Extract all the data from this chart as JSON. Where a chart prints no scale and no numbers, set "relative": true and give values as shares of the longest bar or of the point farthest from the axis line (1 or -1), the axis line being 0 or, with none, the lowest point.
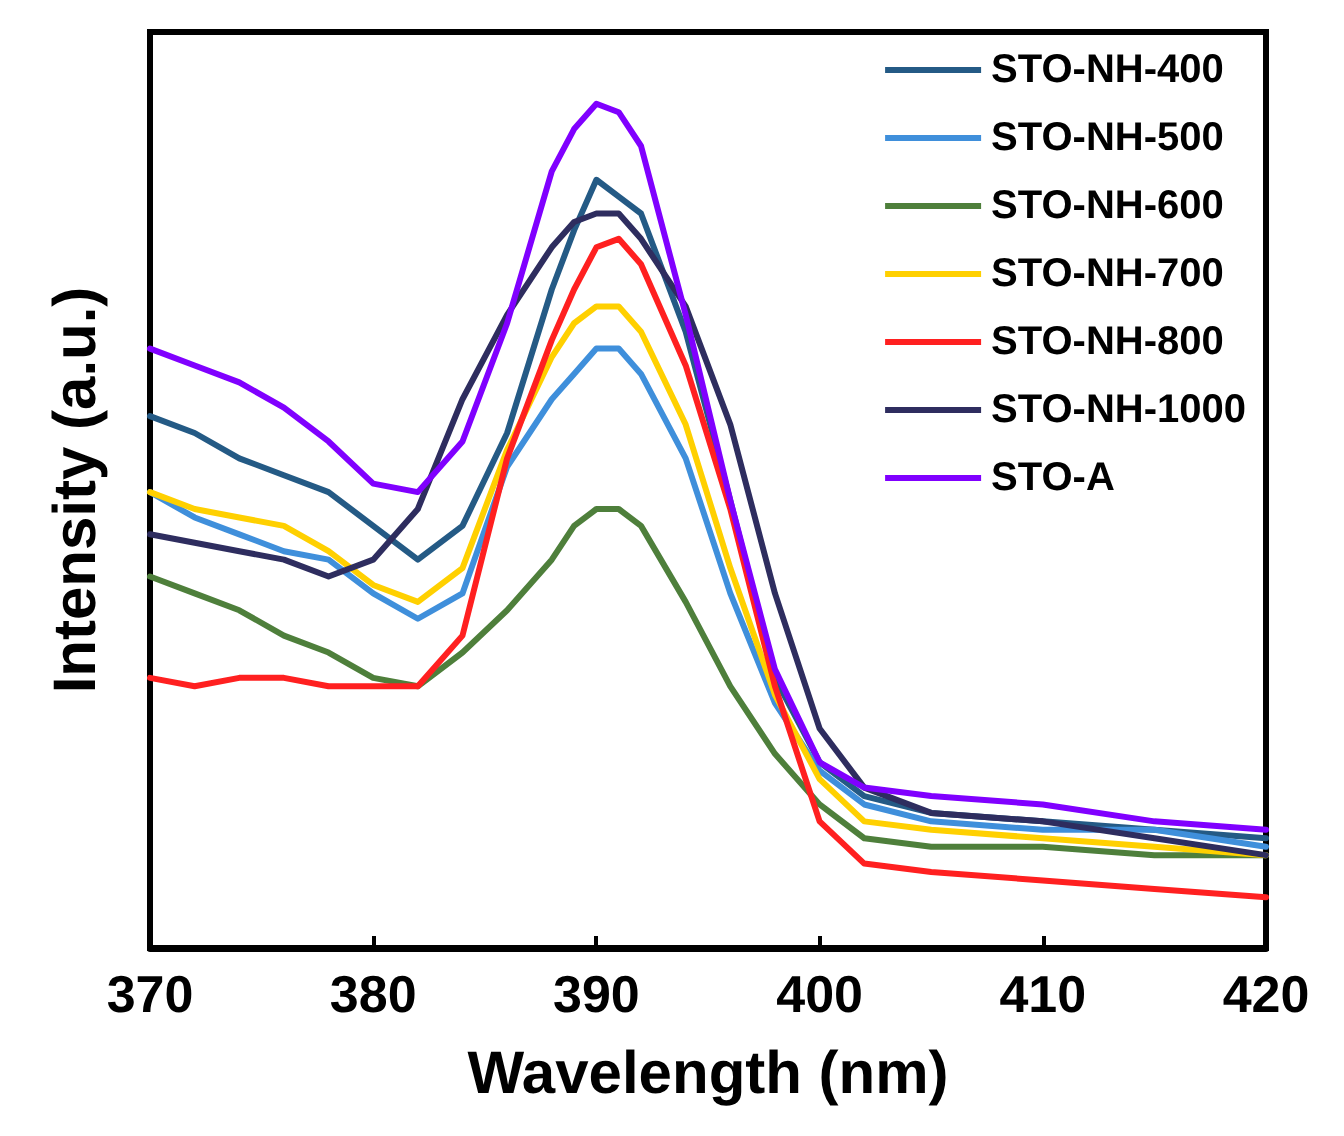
{
  "chart_data": {
    "type": "line",
    "xlabel": "Wavelength (nm)",
    "ylabel": "Intensity (a.u.)",
    "relative": true,
    "x": [
      370,
      372,
      374,
      376,
      378,
      380,
      382,
      384,
      386,
      388,
      389,
      390,
      391,
      392,
      394,
      396,
      398,
      400,
      402,
      405,
      410,
      415,
      420
    ],
    "xlim": [
      370,
      420
    ],
    "xticks": [
      370,
      380,
      390,
      400,
      410,
      420
    ],
    "tick_labels": "x",
    "grid": false,
    "legend": "top right",
    "marker": "none",
    "line_style": "solid",
    "series": [
      {
        "name": "STO-NH-400",
        "color": "#245a85",
        "values": [
          0.63,
          0.61,
          0.58,
          0.56,
          0.54,
          0.5,
          0.46,
          0.5,
          0.61,
          0.78,
          0.85,
          0.91,
          0.89,
          0.87,
          0.73,
          0.53,
          0.32,
          0.22,
          0.18,
          0.16,
          0.15,
          0.14,
          0.13
        ]
      },
      {
        "name": "STO-NH-500",
        "color": "#3f8fdb",
        "values": [
          0.54,
          0.51,
          0.49,
          0.47,
          0.46,
          0.42,
          0.39,
          0.42,
          0.57,
          0.65,
          0.68,
          0.71,
          0.71,
          0.68,
          0.58,
          0.42,
          0.29,
          0.21,
          0.17,
          0.15,
          0.14,
          0.14,
          0.12
        ]
      },
      {
        "name": "STO-NH-600",
        "color": "#4e7f3b",
        "values": [
          0.44,
          0.42,
          0.4,
          0.37,
          0.35,
          0.32,
          0.31,
          0.35,
          0.4,
          0.46,
          0.5,
          0.52,
          0.52,
          0.5,
          0.41,
          0.31,
          0.23,
          0.17,
          0.13,
          0.12,
          0.12,
          0.11,
          0.11
        ]
      },
      {
        "name": "STO-NH-700",
        "color": "#ffd000",
        "values": [
          0.54,
          0.52,
          0.51,
          0.5,
          0.47,
          0.43,
          0.41,
          0.45,
          0.59,
          0.7,
          0.74,
          0.76,
          0.76,
          0.73,
          0.62,
          0.45,
          0.3,
          0.2,
          0.15,
          0.14,
          0.13,
          0.12,
          0.11
        ]
      },
      {
        "name": "STO-NH-800",
        "color": "#ff2020",
        "values": [
          0.32,
          0.31,
          0.32,
          0.32,
          0.31,
          0.31,
          0.31,
          0.37,
          0.58,
          0.72,
          0.78,
          0.83,
          0.84,
          0.81,
          0.69,
          0.52,
          0.31,
          0.15,
          0.1,
          0.09,
          0.08,
          0.07,
          0.06
        ]
      },
      {
        "name": "STO-NH-1000",
        "color": "#2e2d5f",
        "values": [
          0.49,
          0.48,
          0.47,
          0.46,
          0.44,
          0.46,
          0.52,
          0.65,
          0.75,
          0.83,
          0.86,
          0.87,
          0.87,
          0.84,
          0.76,
          0.62,
          0.42,
          0.26,
          0.19,
          0.16,
          0.15,
          0.13,
          0.11
        ]
      },
      {
        "name": "STO-A",
        "color": "#8000ff",
        "values": [
          0.71,
          0.69,
          0.67,
          0.64,
          0.6,
          0.55,
          0.54,
          0.6,
          0.74,
          0.92,
          0.97,
          1,
          0.99,
          0.95,
          0.75,
          0.53,
          0.33,
          0.22,
          0.19,
          0.18,
          0.17,
          0.15,
          0.14
        ]
      }
    ]
  }
}
